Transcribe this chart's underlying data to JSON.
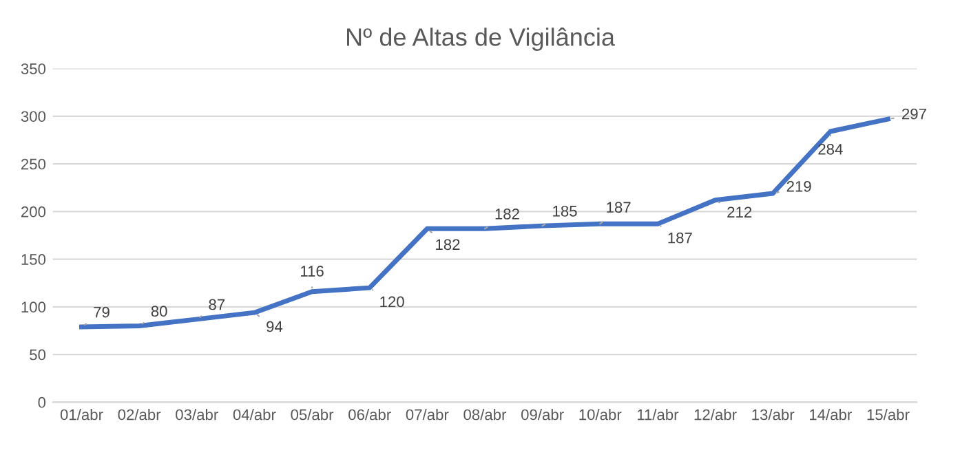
{
  "chart_data": {
    "type": "line",
    "title": "Nº de Altas de Vigilância",
    "categories": [
      "01/abr",
      "02/abr",
      "03/abr",
      "04/abr",
      "05/abr",
      "06/abr",
      "07/abr",
      "08/abr",
      "09/abr",
      "10/abr",
      "11/abr",
      "12/abr",
      "13/abr",
      "14/abr",
      "15/abr"
    ],
    "series": [
      {
        "color": "#4472c4",
        "values": [
          79,
          80,
          87,
          94,
          116,
          120,
          182,
          182,
          185,
          187,
          187,
          212,
          219,
          284,
          297
        ]
      }
    ],
    "ylim": [
      0,
      350
    ],
    "yticks": [
      0,
      50,
      100,
      150,
      200,
      250,
      300,
      350
    ],
    "grid": "y",
    "data_labels": true,
    "marker": "none",
    "line_style": "solid"
  }
}
